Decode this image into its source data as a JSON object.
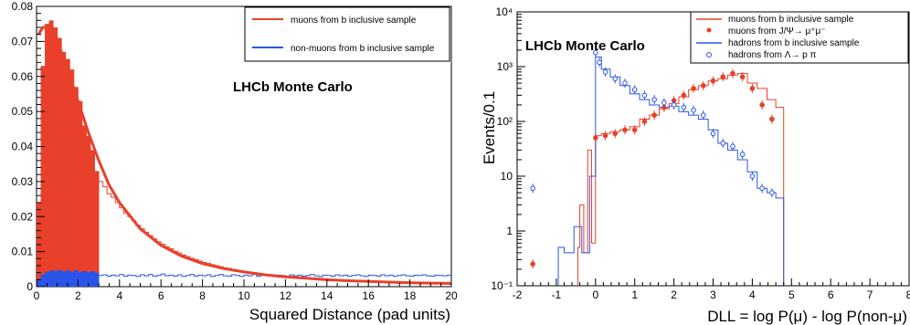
{
  "chart_data": [
    {
      "type": "bar",
      "subtype": "histogram",
      "annotation": "LHCb Monte Carlo",
      "xlabel": "Squared Distance (pad units)",
      "ylabel": "",
      "xlim": [
        0,
        20
      ],
      "ylim": [
        0,
        0.08
      ],
      "y_scale": "linear",
      "x_ticks": [
        "0",
        "2",
        "4",
        "6",
        "8",
        "10",
        "12",
        "14",
        "16",
        "18",
        "20"
      ],
      "y_ticks": [
        "0",
        "0.01",
        "0.02",
        "0.03",
        "0.04",
        "0.05",
        "0.06",
        "0.07",
        "0.08"
      ],
      "legend_position": "top-right",
      "bin_width": 0.2,
      "cut_at": 3.0,
      "series": [
        {
          "name": "muons from b inclusive sample",
          "color": "#e8402a",
          "style": "filled below cut, outline above",
          "x": [
            0.1,
            0.3,
            0.5,
            0.7,
            0.9,
            1.1,
            1.3,
            1.5,
            1.7,
            1.9,
            2.1,
            2.3,
            2.5,
            2.7,
            2.9,
            3.1,
            3.3,
            3.5,
            3.7,
            3.9,
            4.1,
            4.3,
            4.5,
            4.7,
            4.9,
            5.1,
            5.3,
            5.5,
            5.7,
            5.9,
            6.1,
            6.3,
            6.5,
            6.7,
            6.9,
            7.1,
            7.3,
            7.5,
            7.7,
            7.9,
            8.1,
            8.3,
            8.5,
            8.7,
            8.9,
            9.1,
            9.3,
            9.5,
            9.7,
            9.9,
            10.1,
            10.3,
            10.5,
            10.7,
            10.9,
            11.1,
            11.3,
            11.5,
            11.7,
            11.9,
            12.1,
            12.3,
            12.5,
            12.7,
            12.9,
            13.1,
            13.3,
            13.5,
            13.7,
            13.9,
            14.1,
            14.3,
            14.5,
            14.7,
            14.9,
            15.1,
            15.3,
            15.5,
            15.7,
            15.9,
            16.1,
            16.3,
            16.5,
            16.7,
            16.9,
            17.1,
            17.3,
            17.5,
            17.7,
            17.9,
            18.1,
            18.3,
            18.5,
            18.7,
            18.9,
            19.1,
            19.3,
            19.5,
            19.7,
            19.9
          ],
          "values": [
            0.024,
            0.063,
            0.075,
            0.076,
            0.074,
            0.071,
            0.067,
            0.065,
            0.062,
            0.057,
            0.053,
            0.046,
            0.043,
            0.039,
            0.033,
            0.03,
            0.0285,
            0.0265,
            0.0255,
            0.024,
            0.0225,
            0.021,
            0.02,
            0.0188,
            0.0175,
            0.0165,
            0.0155,
            0.0146,
            0.0136,
            0.0128,
            0.0121,
            0.0114,
            0.0108,
            0.0101,
            0.0096,
            0.009,
            0.0086,
            0.0081,
            0.0077,
            0.0073,
            0.0069,
            0.0066,
            0.0063,
            0.006,
            0.0057,
            0.0054,
            0.0052,
            0.0049,
            0.0047,
            0.0045,
            0.0043,
            0.0041,
            0.004,
            0.0038,
            0.0036,
            0.0035,
            0.0034,
            0.0032,
            0.0031,
            0.003,
            0.0029,
            0.0028,
            0.0027,
            0.0026,
            0.0025,
            0.0024,
            0.0024,
            0.0023,
            0.0022,
            0.0021,
            0.0021,
            0.002,
            0.0019,
            0.0019,
            0.0018,
            0.0018,
            0.0017,
            0.0017,
            0.0016,
            0.0016,
            0.0015,
            0.0015,
            0.0014,
            0.0014,
            0.0013,
            0.0013,
            0.0013,
            0.0012,
            0.0012,
            0.0011,
            0.0011,
            0.0011,
            0.001,
            0.001,
            0.001,
            0.0009,
            0.0009,
            0.0009,
            0.0008,
            0.0008
          ]
        },
        {
          "name": "non-muons from b inclusive sample",
          "color": "#2a55e8",
          "style": "filled below cut, outline above",
          "x": [
            0.1,
            0.3,
            0.5,
            0.7,
            0.9,
            1.1,
            1.3,
            1.5,
            1.7,
            1.9,
            2.1,
            2.3,
            2.5,
            2.7,
            2.9,
            3.1,
            3.3,
            3.5,
            3.7,
            3.9,
            4.1,
            4.3,
            4.5,
            4.7,
            4.9,
            5.1,
            5.3,
            5.5,
            5.7,
            5.9,
            6.1,
            6.3,
            6.5,
            6.7,
            6.9,
            7.1,
            7.3,
            7.5,
            7.7,
            7.9,
            8.1,
            8.3,
            8.5,
            8.7,
            8.9,
            9.1,
            9.3,
            9.5,
            9.7,
            9.9,
            10.1,
            10.3,
            10.5,
            10.7,
            10.9,
            11.1,
            11.3,
            11.5,
            11.7,
            11.9,
            12.1,
            12.3,
            12.5,
            12.7,
            12.9,
            13.1,
            13.3,
            13.5,
            13.7,
            13.9,
            14.1,
            14.3,
            14.5,
            14.7,
            14.9,
            15.1,
            15.3,
            15.5,
            15.7,
            15.9,
            16.1,
            16.3,
            16.5,
            16.7,
            16.9,
            17.1,
            17.3,
            17.5,
            17.7,
            17.9,
            18.1,
            18.3,
            18.5,
            18.7,
            18.9,
            19.1,
            19.3,
            19.5,
            19.7,
            19.9
          ],
          "values": [
            0.002,
            0.0035,
            0.0042,
            0.0046,
            0.0045,
            0.0048,
            0.0044,
            0.0046,
            0.0043,
            0.0047,
            0.0042,
            0.0045,
            0.0041,
            0.0044,
            0.004,
            0.0032,
            0.0034,
            0.003,
            0.0033,
            0.0031,
            0.0035,
            0.003,
            0.0033,
            0.0032,
            0.0029,
            0.0034,
            0.0031,
            0.0035,
            0.003,
            0.0032,
            0.0036,
            0.0031,
            0.0033,
            0.003,
            0.0034,
            0.0029,
            0.0032,
            0.0035,
            0.003,
            0.0033,
            0.0031,
            0.0034,
            0.0029,
            0.0032,
            0.0035,
            0.0031,
            0.003,
            0.0034,
            0.0032,
            0.0029,
            0.0033,
            0.0031,
            0.0035,
            0.003,
            0.0032,
            0.0034,
            0.0031,
            0.0029,
            0.0033,
            0.0032,
            0.003,
            0.0034,
            0.0031,
            0.0033,
            0.003,
            0.0032,
            0.0035,
            0.0031,
            0.0029,
            0.0033,
            0.0032,
            0.003,
            0.0034,
            0.0031,
            0.0033,
            0.003,
            0.0032,
            0.0034,
            0.0031,
            0.0029,
            0.0033,
            0.0032,
            0.003,
            0.0034,
            0.0031,
            0.0033,
            0.003,
            0.0032,
            0.0034,
            0.0031,
            0.003,
            0.0033,
            0.0032,
            0.0034,
            0.0031,
            0.003,
            0.0033,
            0.0032,
            0.0031,
            0.0033
          ]
        }
      ],
      "fit": {
        "color": "#e8402a",
        "x": [
          0.1,
          0.3,
          0.5,
          0.7,
          0.9,
          1.2,
          1.5,
          2.0,
          2.5,
          3.0,
          3.5,
          4.0,
          5.0,
          6.0,
          7.0,
          8.0,
          9.0,
          10.0,
          11.0,
          12.0,
          13.0,
          14.0,
          15.0,
          16.0,
          17.0,
          18.0,
          19.0,
          20.0
        ],
        "values": [
          0.072,
          0.074,
          0.074,
          0.073,
          0.071,
          0.067,
          0.062,
          0.053,
          0.044,
          0.036,
          0.029,
          0.024,
          0.0165,
          0.0118,
          0.0087,
          0.0066,
          0.0052,
          0.0042,
          0.0034,
          0.0028,
          0.0024,
          0.002,
          0.0017,
          0.0015,
          0.0013,
          0.0011,
          0.001,
          0.0009
        ]
      }
    },
    {
      "type": "bar",
      "subtype": "histogram",
      "annotation": "LHCb Monte Carlo",
      "xlabel": "DLL = log P(μ) - log P(non-μ)",
      "ylabel": "Events/0.1",
      "xlim": [
        -2,
        8
      ],
      "ylim": [
        0.1,
        10000
      ],
      "y_scale": "log",
      "x_ticks": [
        "-2",
        "-1",
        "0",
        "1",
        "2",
        "3",
        "4",
        "5",
        "6",
        "7",
        "8"
      ],
      "y_ticks": [
        "10⁻¹",
        "1",
        "10",
        "10²",
        "10³",
        "10⁴"
      ],
      "legend_position": "top-right",
      "series": [
        {
          "name": "muons from b inclusive sample",
          "color": "#e8402a",
          "style": "step",
          "x": [
            -0.45,
            -0.35,
            -0.25,
            -0.15,
            -0.05,
            0.05,
            0.25,
            0.5,
            0.75,
            1.0,
            1.25,
            1.5,
            1.75,
            2.0,
            2.25,
            2.5,
            2.75,
            3.0,
            3.25,
            3.5,
            3.75,
            4.0,
            4.25,
            4.5,
            4.7
          ],
          "values": [
            0.5,
            3,
            0.4,
            30,
            0.6,
            55,
            60,
            65,
            70,
            80,
            110,
            130,
            170,
            210,
            280,
            380,
            450,
            550,
            600,
            700,
            750,
            500,
            400,
            250,
            180
          ]
        },
        {
          "name": "muons from J/Ψ→ μ⁺μ⁻",
          "color": "#e8402a",
          "style": "markers (filled)",
          "x": [
            -1.6,
            0.0,
            0.25,
            0.5,
            0.75,
            1.0,
            1.25,
            1.5,
            1.75,
            2.0,
            2.25,
            2.5,
            2.75,
            3.0,
            3.25,
            3.5,
            3.75,
            4.0,
            4.25,
            4.5
          ],
          "values": [
            0.25,
            50,
            55,
            60,
            70,
            70,
            100,
            130,
            180,
            240,
            300,
            400,
            450,
            550,
            650,
            750,
            650,
            400,
            200,
            110
          ]
        },
        {
          "name": "hadrons from b inclusive sample",
          "color": "#2a55e8",
          "style": "step",
          "x": [
            -0.95,
            -0.65,
            -0.45,
            -0.25,
            -0.05,
            0.05,
            0.25,
            0.5,
            0.75,
            1.0,
            1.25,
            1.5,
            1.75,
            2.0,
            2.25,
            2.5,
            2.75,
            3.0,
            3.25,
            3.5,
            3.75,
            4.0,
            4.25,
            4.5,
            4.7
          ],
          "values": [
            0.5,
            0.4,
            1.2,
            0.4,
            10,
            1500,
            900,
            650,
            450,
            320,
            250,
            200,
            180,
            190,
            150,
            130,
            110,
            70,
            40,
            30,
            20,
            12,
            6,
            5,
            4
          ]
        },
        {
          "name": "hadrons from Λ→ p π",
          "color": "#2a55e8",
          "style": "markers (open)",
          "x": [
            -1.6,
            0.0,
            0.1,
            0.25,
            0.5,
            0.75,
            1.0,
            1.25,
            1.5,
            1.75,
            2.0,
            2.25,
            2.5,
            2.75,
            3.0,
            3.25,
            3.5,
            3.75,
            4.0,
            4.25,
            4.5
          ],
          "values": [
            6,
            1800,
            1200,
            800,
            600,
            500,
            380,
            300,
            250,
            220,
            200,
            180,
            160,
            130,
            60,
            40,
            35,
            25,
            10,
            6,
            5
          ]
        }
      ]
    }
  ]
}
